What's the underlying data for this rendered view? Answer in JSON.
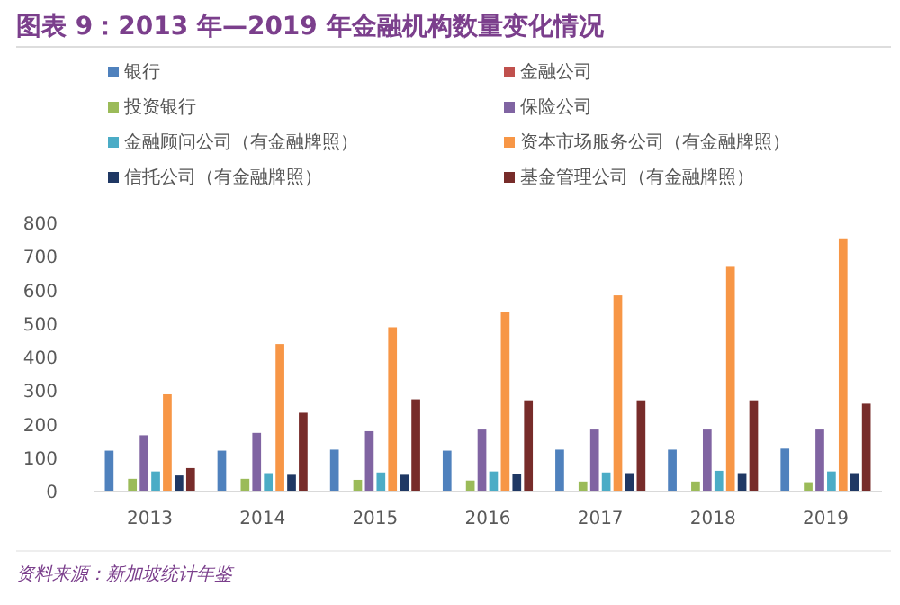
{
  "chart_data": {
    "type": "bar",
    "title": "图表 9：2013 年—2019 年金融机构数量变化情况",
    "categories": [
      "2013",
      "2014",
      "2015",
      "2016",
      "2017",
      "2018",
      "2019"
    ],
    "series": [
      {
        "name": "银行",
        "color": "#4f81bd",
        "values": [
          122,
          122,
          125,
          122,
          125,
          125,
          128
        ]
      },
      {
        "name": "金融公司",
        "color": "#c0504d",
        "values": [
          0,
          0,
          0,
          0,
          0,
          0,
          0
        ]
      },
      {
        "name": "投资银行",
        "color": "#9bbb59",
        "values": [
          38,
          38,
          35,
          33,
          30,
          30,
          28
        ]
      },
      {
        "name": "保险公司",
        "color": "#8064a2",
        "values": [
          168,
          175,
          180,
          185,
          185,
          185,
          185
        ]
      },
      {
        "name": "金融顾问公司（有金融牌照）",
        "color": "#4bacc6",
        "values": [
          60,
          55,
          57,
          60,
          57,
          62,
          60
        ]
      },
      {
        "name": "资本市场服务公司（有金融牌照）",
        "color": "#f79646",
        "values": [
          290,
          440,
          490,
          535,
          585,
          670,
          755
        ]
      },
      {
        "name": "信托公司（有金融牌照）",
        "color": "#1f3864",
        "values": [
          48,
          50,
          50,
          52,
          55,
          55,
          55
        ]
      },
      {
        "name": "基金管理公司（有金融牌照）",
        "color": "#772c2a",
        "values": [
          70,
          235,
          275,
          272,
          272,
          272,
          262
        ]
      }
    ],
    "ylim": [
      0,
      800
    ],
    "yticks": [
      0,
      100,
      200,
      300,
      400,
      500,
      600,
      700,
      800
    ],
    "grid": false,
    "legend": "top",
    "annotations": [
      "资料来源：新加坡统计年鉴"
    ]
  }
}
